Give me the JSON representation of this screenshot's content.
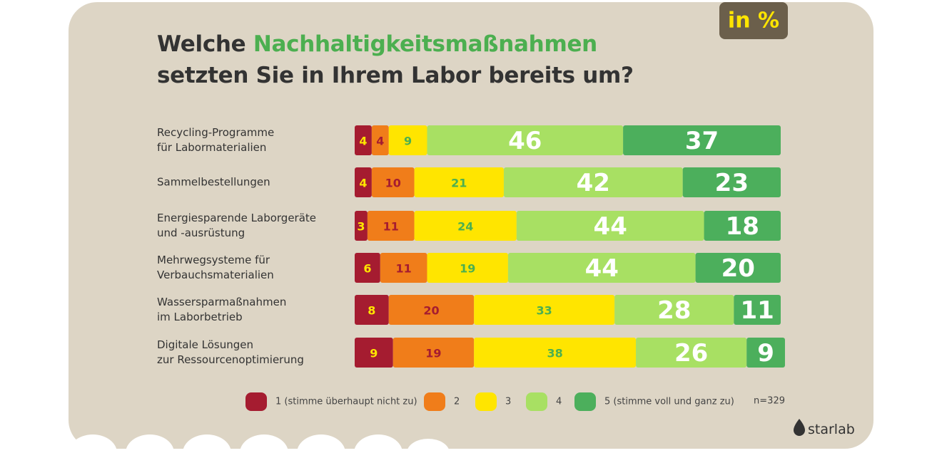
{
  "chart_data": {
    "type": "stacked-bar-horizontal",
    "title_parts": [
      "Welche ",
      "Nachhaltigkeitsmaßnahmen",
      "setzten Sie in Ihrem Labor bereits um?"
    ],
    "title_highlight_color": "#4caf50",
    "unit_badge": "in %",
    "categories": [
      "Recycling-Programme\nfür Labormaterialien",
      "Sammelbestellungen",
      "Energiesparende Laborgeräte\nund -ausrüstung",
      "Mehrwegsysteme für\nVerbauchsmaterialien",
      "Wassersparmaßnahmen\nim Laborbetrieb",
      "Digitale Lösungen\nzur Ressourcenoptimierung"
    ],
    "series": [
      {
        "name": "1 (stimme überhaupt nicht zu)",
        "color": "#a51c30",
        "label_color": "#ffe500",
        "values": [
          4,
          4,
          3,
          6,
          8,
          9
        ]
      },
      {
        "name": "2",
        "color": "#f07d1a",
        "label_color": "#a51c30",
        "values": [
          4,
          10,
          11,
          11,
          20,
          19
        ]
      },
      {
        "name": "3",
        "color": "#ffe500",
        "label_color": "#4caf50",
        "values": [
          9,
          21,
          24,
          19,
          33,
          38
        ]
      },
      {
        "name": "4",
        "color": "#a8e063",
        "label_color": "#ffffff",
        "values": [
          46,
          42,
          44,
          44,
          28,
          26
        ]
      },
      {
        "name": "5 (stimme voll und ganz zu)",
        "color": "#4caf5c",
        "label_color": "#ffffff",
        "values": [
          37,
          23,
          18,
          20,
          11,
          9
        ]
      }
    ],
    "xlim": [
      0,
      100
    ],
    "note": "n=329",
    "brand": "starlab"
  }
}
